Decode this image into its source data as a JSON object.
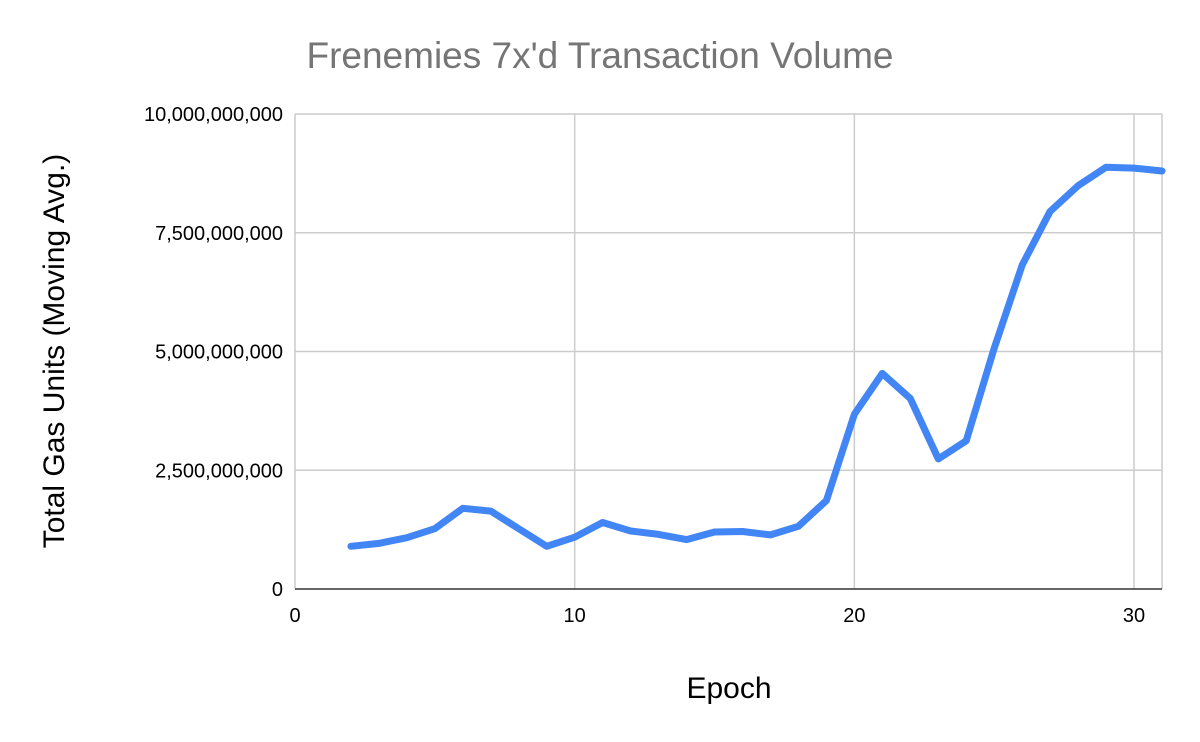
{
  "chart_data": {
    "type": "line",
    "title": "Frenemies 7x'd Transaction Volume",
    "xlabel": "Epoch",
    "ylabel": "Total Gas Units (Moving Avg.)",
    "xlim": [
      0,
      31
    ],
    "ylim": [
      0,
      10000000000
    ],
    "x_ticks": [
      0,
      10,
      20,
      30
    ],
    "x_tick_labels": [
      "0",
      "10",
      "20",
      "30"
    ],
    "y_ticks": [
      0,
      2500000000,
      5000000000,
      7500000000,
      10000000000
    ],
    "y_tick_labels": [
      "0",
      "2,500,000,000",
      "5,000,000,000",
      "7,500,000,000",
      "10,000,000,000"
    ],
    "grid": true,
    "legend": "none",
    "series_color": "#4285f4",
    "x": [
      2,
      3,
      4,
      5,
      6,
      7,
      8,
      9,
      10,
      11,
      12,
      13,
      14,
      15,
      16,
      17,
      18,
      19,
      20,
      21,
      22,
      23,
      24,
      25,
      26,
      27,
      28,
      29,
      30,
      31
    ],
    "series": [
      {
        "values": [
          900000000,
          960000000,
          1080000000,
          1270000000,
          1700000000,
          1640000000,
          1270000000,
          900000000,
          1090000000,
          1400000000,
          1220000000,
          1150000000,
          1040000000,
          1200000000,
          1210000000,
          1140000000,
          1320000000,
          1860000000,
          3680000000,
          4540000000,
          4010000000,
          2740000000,
          3120000000,
          5070000000,
          6820000000,
          7950000000,
          8490000000,
          8880000000,
          8860000000,
          8800000000
        ]
      }
    ]
  }
}
